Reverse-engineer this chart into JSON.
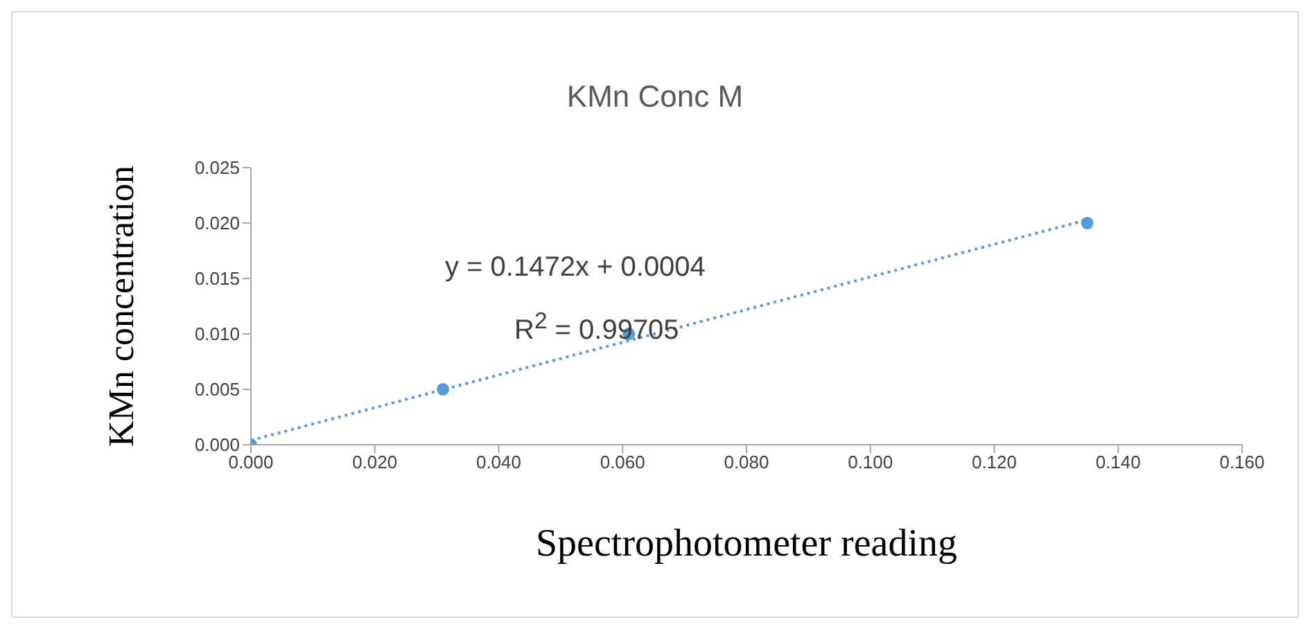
{
  "chart_data": {
    "type": "scatter",
    "title": "KMn Conc M",
    "xlabel": "Spectrophotometer reading",
    "ylabel": "KMn concentration",
    "annotations": [
      "y = 0.1472x + 0.0004",
      "R$^{2}$ = 0.99705"
    ],
    "series": [
      {
        "color": "#5b9bd5",
        "x": [
          0,
          0.031,
          0.061,
          0.135
        ],
        "values": [
          0,
          0.005,
          0.01,
          0.02
        ],
        "marker": "circle"
      },
      {
        "type": "line",
        "color": "#5b9bd5",
        "x": [
          0,
          0.135
        ],
        "values": [
          0.0004,
          0.0203
        ],
        "line_style": "dotted",
        "marker": "none"
      }
    ],
    "xlim": [
      0,
      0.16
    ],
    "xticks": [
      {
        "value": 0,
        "label": "0.000"
      },
      {
        "value": 0.02,
        "label": "0.020"
      },
      {
        "value": 0.04,
        "label": "0.040"
      },
      {
        "value": 0.06,
        "label": "0.060"
      },
      {
        "value": 0.08,
        "label": "0.080"
      },
      {
        "value": 0.1,
        "label": "0.100"
      },
      {
        "value": 0.12,
        "label": "0.120"
      },
      {
        "value": 0.14,
        "label": "0.140"
      },
      {
        "value": 0.16,
        "label": "0.160"
      }
    ],
    "ylim": [
      0,
      0.025
    ],
    "yticks": [
      {
        "value": 0,
        "label": "0.000"
      },
      {
        "value": 0.005,
        "label": "0.005"
      },
      {
        "value": 0.01,
        "label": "0.010"
      },
      {
        "value": 0.015,
        "label": "0.015"
      },
      {
        "value": 0.02,
        "label": "0.020"
      },
      {
        "value": 0.025,
        "label": "0.025"
      }
    ],
    "grid": false,
    "legend": false
  }
}
